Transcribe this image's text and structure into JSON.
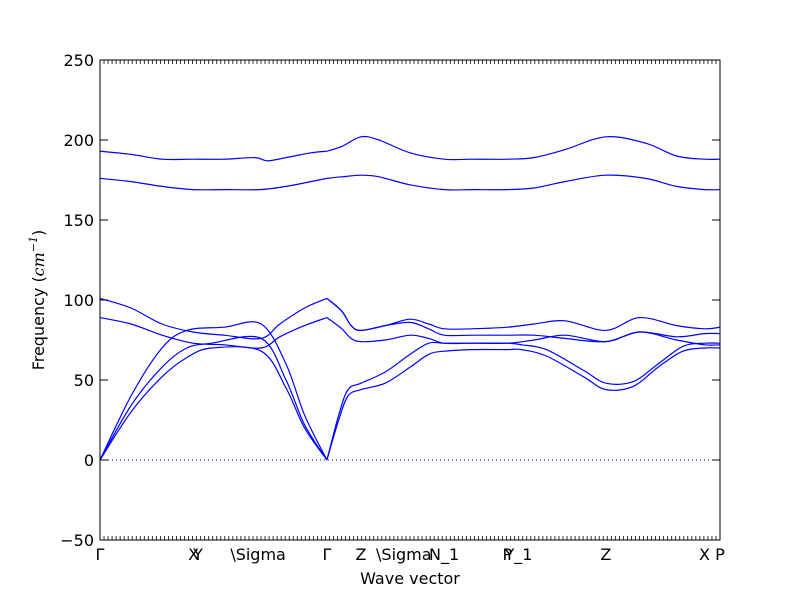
{
  "chart_data": {
    "type": "line",
    "title": "",
    "xlabel": "Wave vector",
    "ylabel_text": "Frequency (",
    "ylabel_math": "cm",
    "ylabel_exp": "−1",
    "ylabel_close": ")",
    "ylim": [
      -50,
      250
    ],
    "yticks": [
      -50,
      0,
      50,
      100,
      150,
      200,
      250
    ],
    "ytick_labels": [
      "−50",
      "0",
      "50",
      "100",
      "150",
      "200",
      "250"
    ],
    "xlim": [
      0,
      1
    ],
    "high_symmetry_points": [
      {
        "label": "Γ",
        "x": 0.0
      },
      {
        "label": "X",
        "x": 0.151
      },
      {
        "label": "Y",
        "x": 0.158
      },
      {
        "label": "\\Sigma",
        "x": 0.255
      },
      {
        "label": "Γ",
        "x": 0.366
      },
      {
        "label": "Z",
        "x": 0.421
      },
      {
        "label": "\\Sigma",
        "x": 0.49
      },
      {
        "label": "N_1",
        "x": 0.555
      },
      {
        "label": "P",
        "x": 0.657
      },
      {
        "label": "Y_1",
        "x": 0.675
      },
      {
        "label": "Z",
        "x": 0.816
      },
      {
        "label": "X",
        "x": 0.975
      },
      {
        "label": "P",
        "x": 1.0
      }
    ],
    "zero_line": true,
    "line_color": "#0000ff",
    "series": [
      {
        "x": [
          0,
          0.05,
          0.1,
          0.14,
          0.18,
          0.26,
          0.3,
          0.33,
          0.366
        ],
        "y": [
          0,
          30,
          52,
          64,
          70,
          68,
          45,
          20,
          0
        ]
      },
      {
        "x": [
          0,
          0.05,
          0.1,
          0.14,
          0.18,
          0.26,
          0.3,
          0.33,
          0.366
        ],
        "y": [
          0,
          34,
          58,
          70,
          73,
          76,
          50,
          22,
          0
        ]
      },
      {
        "x": [
          0,
          0.05,
          0.1,
          0.14,
          0.2,
          0.26,
          0.3,
          0.33,
          0.366
        ],
        "y": [
          0,
          40,
          70,
          81,
          83,
          85,
          60,
          28,
          0
        ]
      },
      {
        "x": [
          0,
          0.05,
          0.1,
          0.15,
          0.2,
          0.26,
          0.29,
          0.33,
          0.366
        ],
        "y": [
          89,
          85,
          78,
          73,
          72,
          70,
          77,
          84,
          89
        ]
      },
      {
        "x": [
          0,
          0.05,
          0.1,
          0.15,
          0.2,
          0.26,
          0.29,
          0.33,
          0.366
        ],
        "y": [
          101,
          95,
          85,
          80,
          78,
          76,
          85,
          95,
          101
        ]
      },
      {
        "x": [
          0,
          0.05,
          0.1,
          0.15,
          0.2,
          0.258,
          0.3,
          0.34,
          0.366
        ],
        "y": [
          176,
          174,
          171,
          169,
          169,
          169,
          171,
          174,
          176
        ]
      },
      {
        "x": [
          0,
          0.05,
          0.1,
          0.15,
          0.2,
          0.25,
          0.27,
          0.3,
          0.34,
          0.366
        ],
        "y": [
          193,
          191,
          188,
          188,
          188,
          189,
          187,
          189,
          192,
          193
        ]
      },
      {
        "x": [
          0.366,
          0.385,
          0.4,
          0.421,
          0.46,
          0.5,
          0.53,
          0.555,
          0.6,
          0.657,
          0.68,
          0.72,
          0.78,
          0.816,
          0.86,
          0.9,
          0.94,
          0.975,
          1.0
        ],
        "y": [
          0,
          25,
          40,
          44,
          48,
          58,
          66,
          68,
          69,
          69,
          69,
          65,
          52,
          44,
          46,
          58,
          68,
          70,
          70
        ]
      },
      {
        "x": [
          0.366,
          0.385,
          0.4,
          0.421,
          0.46,
          0.5,
          0.53,
          0.555,
          0.6,
          0.657,
          0.68,
          0.72,
          0.78,
          0.816,
          0.86,
          0.9,
          0.94,
          0.975,
          1.0
        ],
        "y": [
          0,
          28,
          44,
          48,
          55,
          66,
          73,
          73,
          73,
          73,
          72,
          69,
          56,
          48,
          49,
          60,
          71,
          73,
          73
        ]
      },
      {
        "x": [
          0.366,
          0.39,
          0.405,
          0.421,
          0.46,
          0.5,
          0.53,
          0.555,
          0.6,
          0.657,
          0.7,
          0.75,
          0.816,
          0.87,
          0.93,
          0.975,
          1.0
        ],
        "y": [
          89,
          82,
          76,
          74,
          75,
          78,
          76,
          73,
          73,
          73,
          75,
          78,
          74,
          80,
          75,
          72,
          72
        ]
      },
      {
        "x": [
          0.366,
          0.39,
          0.405,
          0.421,
          0.46,
          0.5,
          0.53,
          0.555,
          0.6,
          0.657,
          0.7,
          0.75,
          0.816,
          0.87,
          0.93,
          0.975,
          1.0
        ],
        "y": [
          101,
          93,
          84,
          81,
          84,
          86,
          82,
          78,
          78,
          78,
          78,
          76,
          74,
          80,
          77,
          79,
          79
        ]
      },
      {
        "x": [
          0.366,
          0.39,
          0.405,
          0.421,
          0.46,
          0.5,
          0.53,
          0.555,
          0.6,
          0.657,
          0.7,
          0.75,
          0.816,
          0.87,
          0.93,
          0.975,
          1.0
        ],
        "y": [
          101,
          93,
          84,
          81,
          84,
          88,
          85,
          82,
          82,
          83,
          85,
          87,
          81,
          89,
          84,
          82,
          83
        ]
      },
      {
        "x": [
          0.366,
          0.39,
          0.421,
          0.45,
          0.5,
          0.555,
          0.6,
          0.657,
          0.7,
          0.75,
          0.816,
          0.88,
          0.93,
          0.975,
          1.0
        ],
        "y": [
          176,
          177,
          178,
          177,
          172,
          169,
          169,
          169,
          170,
          174,
          178,
          176,
          171,
          169,
          169
        ]
      },
      {
        "x": [
          0.366,
          0.39,
          0.421,
          0.45,
          0.5,
          0.555,
          0.6,
          0.657,
          0.7,
          0.75,
          0.816,
          0.88,
          0.93,
          0.975,
          1.0
        ],
        "y": [
          193,
          196,
          202,
          200,
          192,
          188,
          188,
          188,
          189,
          194,
          202,
          198,
          190,
          188,
          188
        ]
      }
    ]
  }
}
